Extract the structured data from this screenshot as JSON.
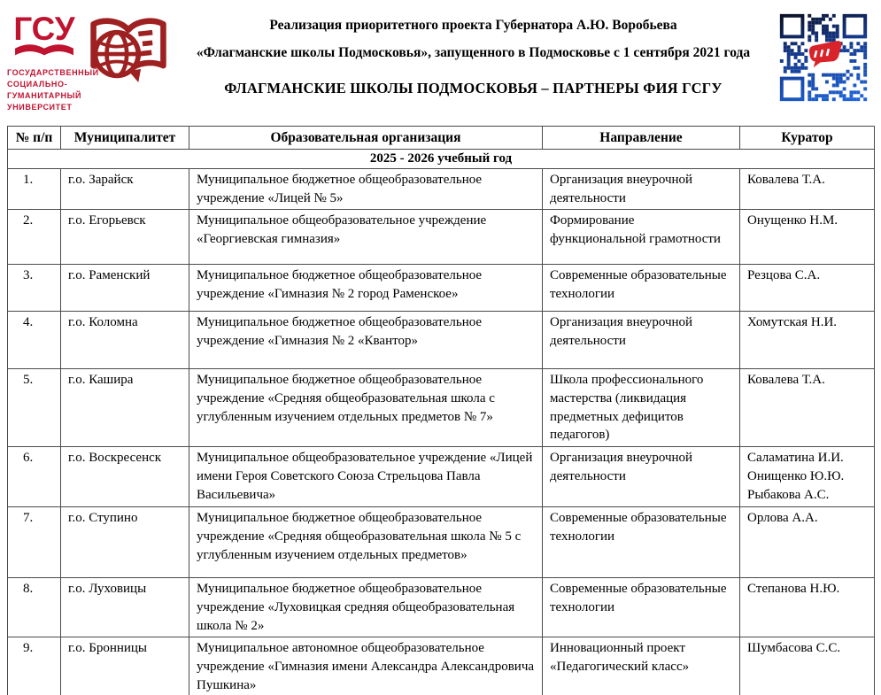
{
  "logo": {
    "acronym": "ГСУ",
    "caption": "ГОСУДАРСТВЕННЫЙ\nСОЦИАЛЬНО-\nГУМАНИТАРНЫЙ\nУНИВЕРСИТЕТ"
  },
  "header": {
    "line1": "Реализация приоритетного проекта Губернатора А.Ю. Воробьева",
    "line2": "«Флагманские школы Подмосковья», запущенного в Подмосковье с 1 сентября 2021 года",
    "title": "ФЛАГМАНСКИЕ ШКОЛЫ ПОДМОСКОВЬЯ – ПАРТНЕРЫ ФИЯ ГСГУ"
  },
  "colors": {
    "logo_red": "#c01330",
    "logo_dark_red": "#9e2020",
    "qr_dark": "#0a0c18",
    "qr_blue": "#1e63d6",
    "qr_center_red": "#d8232a",
    "table_border": "#4a4a4a"
  },
  "table": {
    "columns": [
      "№ п/п",
      "Муниципалитет",
      "Образовательная организация",
      "Направление",
      "Куратор"
    ],
    "section": "2025 - 2026 учебный год",
    "rows": [
      {
        "num": "1.",
        "municipality": "г.о. Зарайск",
        "organization": "Муниципальное бюджетное общеобразовательное учреждение «Лицей № 5»",
        "direction": "Организация внеурочной деятельности",
        "curator": "Ковалева Т.А."
      },
      {
        "num": "2.",
        "municipality": "г.о. Егорьевск",
        "organization": "Муниципальное общеобразовательное учреждение «Георгиевская гимназия»",
        "direction": "Формирование функциональной грамотности",
        "curator": "Онущенко Н.М."
      },
      {
        "num": "3.",
        "municipality": "г.о. Раменский",
        "organization": "Муниципальное бюджетное общеобразовательное учреждение «Гимназия № 2 город Раменское»",
        "direction": "Современные образовательные технологии",
        "curator": "Резцова С.А."
      },
      {
        "num": "4.",
        "municipality": "г.о. Коломна",
        "organization": "Муниципальное бюджетное общеобразовательное учреждение «Гимназия № 2 «Квантор»",
        "direction": "Организация внеурочной деятельности",
        "curator": "Хомутская Н.И."
      },
      {
        "num": "5.",
        "municipality": "г.о. Кашира",
        "organization": "Муниципальное бюджетное общеобразовательное учреждение «Средняя общеобразовательная школа с углубленным изучением отдельных предметов № 7»",
        "direction": "Школа профессионального мастерства (ликвидация предметных дефицитов педагогов)",
        "curator": "Ковалева Т.А."
      },
      {
        "num": "6.",
        "municipality": "г.о. Воскресенск",
        "organization": "Муниципальное общеобразовательное учреждение «Лицей имени Героя Советского Союза Стрельцова Павла Васильевича»",
        "direction": "Организация внеурочной деятельности",
        "curator": "Саламатина И.И.\nОнищенко Ю.Ю.\nРыбакова А.С."
      },
      {
        "num": "7.",
        "municipality": "г.о. Ступино",
        "organization": "Муниципальное бюджетное общеобразовательное учреждение «Средняя общеобразовательная школа № 5 с углубленным изучением отдельных предметов»",
        "direction": "Современные образовательные технологии",
        "curator": "Орлова А.А."
      },
      {
        "num": "8.",
        "municipality": "г.о. Луховицы",
        "organization": "Муниципальное бюджетное общеобразовательное учреждение «Луховицкая средняя общеобразовательная школа № 2»",
        "direction": "Современные образовательные технологии",
        "curator": "Степанова Н.Ю."
      },
      {
        "num": "9.",
        "municipality": "г.о. Бронницы",
        "organization": "Муниципальное автономное общеобразовательное учреждение «Гимназия имени Александра Александровича Пушкина»",
        "direction": "Инновационный проект «Педагогический класс»",
        "curator": "Шумбасова С.С."
      }
    ]
  }
}
